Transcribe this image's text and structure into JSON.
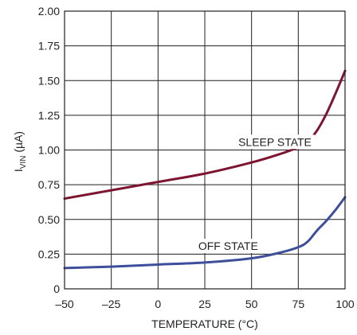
{
  "chart_data": {
    "type": "line",
    "xlabel": "TEMPERATURE (°C)",
    "ylabel": {
      "main": "I",
      "sub": "VIN",
      "unit": " (µA)"
    },
    "xlim": [
      -50,
      100
    ],
    "ylim": [
      0,
      2.0
    ],
    "x_ticks": [
      -50,
      -25,
      0,
      25,
      50,
      75,
      100
    ],
    "x_tick_labels": [
      "–50",
      "–25",
      "0",
      "25",
      "50",
      "75",
      "100"
    ],
    "y_ticks": [
      0,
      0.25,
      0.5,
      0.75,
      1.0,
      1.25,
      1.5,
      1.75,
      2.0
    ],
    "y_tick_labels": [
      "0",
      "0.25",
      "0.50",
      "0.75",
      "1.00",
      "1.25",
      "1.50",
      "1.75",
      "2.00"
    ],
    "grid": true,
    "series": [
      {
        "name": "SLEEP STATE",
        "color": "#7d1530",
        "points": [
          [
            -50,
            0.65
          ],
          [
            -25,
            0.71
          ],
          [
            0,
            0.77
          ],
          [
            25,
            0.83
          ],
          [
            50,
            0.91
          ],
          [
            65,
            0.97
          ],
          [
            75,
            1.02
          ],
          [
            80,
            1.06
          ],
          [
            85,
            1.14
          ],
          [
            90,
            1.26
          ],
          [
            95,
            1.41
          ],
          [
            100,
            1.57
          ]
        ]
      },
      {
        "name": "OFF STATE",
        "color": "#3d4f9a",
        "points": [
          [
            -50,
            0.15
          ],
          [
            -25,
            0.16
          ],
          [
            0,
            0.175
          ],
          [
            25,
            0.19
          ],
          [
            50,
            0.22
          ],
          [
            65,
            0.26
          ],
          [
            75,
            0.3
          ],
          [
            80,
            0.34
          ],
          [
            85,
            0.42
          ],
          [
            90,
            0.49
          ],
          [
            95,
            0.57
          ],
          [
            100,
            0.66
          ]
        ]
      }
    ],
    "annotations": [
      {
        "text": "SLEEP STATE",
        "series": "SLEEP STATE"
      },
      {
        "text": "OFF STATE",
        "series": "OFF STATE"
      }
    ]
  }
}
